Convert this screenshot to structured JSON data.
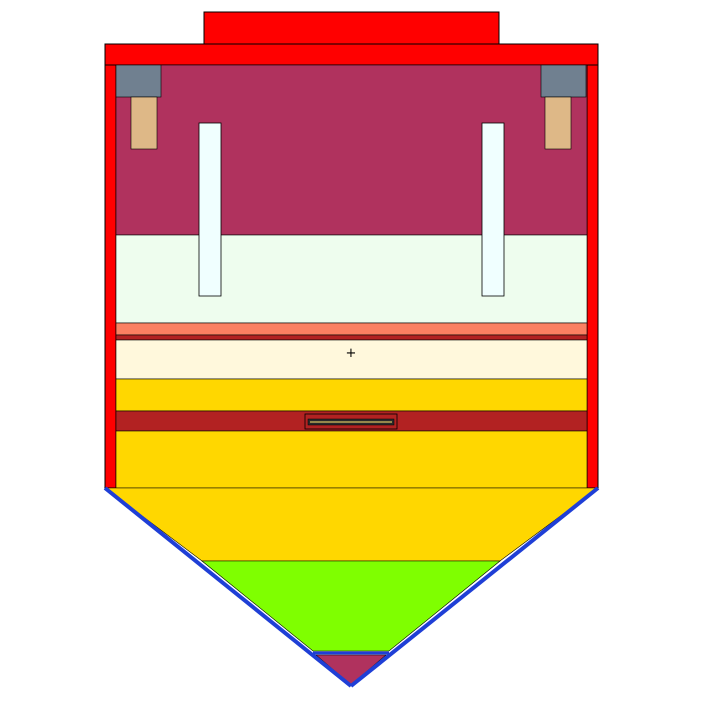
{
  "diagram": {
    "colors": {
      "wall_red": "#ff0000",
      "plum": "#b0325e",
      "mint": "#eefdee",
      "salmon": "#fa8062",
      "cream": "#fff8dc",
      "gold": "#ffd700",
      "brick": "#b22222",
      "lime": "#7fff00",
      "blue_edge": "#1f3fd6",
      "slate": "#708090",
      "tan": "#deb887",
      "rod": "#f0ffff",
      "outline": "#000000"
    },
    "center_marker": "+"
  }
}
